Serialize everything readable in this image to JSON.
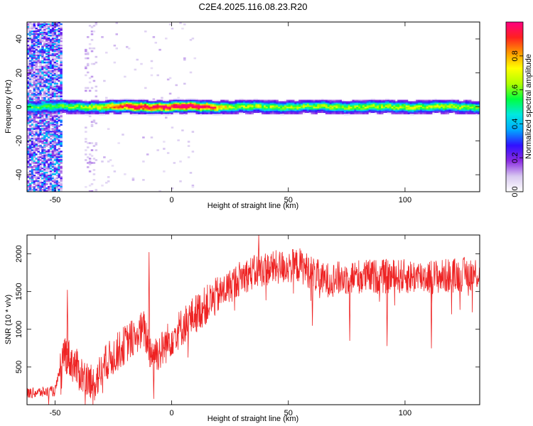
{
  "figure": {
    "title": "C2E4.2025.116.08.23.R20"
  },
  "chart_data": [
    {
      "type": "heatmap",
      "xlabel": "Height of straight line (km)",
      "ylabel": "Frequency (Hz)",
      "xlim": [
        -62,
        132
      ],
      "ylim": [
        -50,
        50
      ],
      "xticks": [
        -50,
        0,
        50,
        100
      ],
      "yticks": [
        -40,
        -20,
        0,
        20,
        40
      ],
      "colorbar": {
        "label": "Normalized spectral amplitude",
        "range": [
          0,
          1
        ],
        "ticks": [
          0.0,
          0.2,
          0.4,
          0.6,
          0.8
        ],
        "tick_labels": [
          "0.0",
          "0.2",
          "0.4",
          "0.6",
          "0.8"
        ],
        "colormap": [
          "#ffffff",
          "#d8c8f0",
          "#8a2be2",
          "#3010ff",
          "#00a8ff",
          "#00e8e0",
          "#00ff40",
          "#b0ff00",
          "#ffff00",
          "#ff9900",
          "#ff2020",
          "#ff0080"
        ]
      },
      "ridge": {
        "center_freq_hz": 0,
        "profile": [
          {
            "x": -48,
            "amp": 0.45
          },
          {
            "x": -40,
            "amp": 0.5
          },
          {
            "x": -30,
            "amp": 0.6
          },
          {
            "x": -17,
            "amp": 0.95
          },
          {
            "x": -10,
            "amp": 0.9
          },
          {
            "x": 0,
            "amp": 0.88
          },
          {
            "x": 5,
            "amp": 0.98
          },
          {
            "x": 15,
            "amp": 0.85
          },
          {
            "x": 25,
            "amp": 0.55
          },
          {
            "x": 50,
            "amp": 0.5
          },
          {
            "x": 75,
            "amp": 0.52
          },
          {
            "x": 100,
            "amp": 0.55
          },
          {
            "x": 132,
            "amp": 0.5
          }
        ]
      },
      "noise_region": {
        "x": [
          -62,
          -47
        ],
        "amp": 0.35
      }
    },
    {
      "type": "line",
      "xlabel": "Height of straight line (km)",
      "ylabel": "SNR (10 * v/v)",
      "xlim": [
        -62,
        132
      ],
      "ylim": [
        0,
        2250
      ],
      "xticks": [
        -50,
        0,
        50,
        100
      ],
      "yticks": [
        500,
        1000,
        1500,
        2000
      ],
      "series": [
        {
          "color": "#ee2222",
          "trend": [
            {
              "x": -62,
              "y": 150
            },
            {
              "x": -50,
              "y": 180
            },
            {
              "x": -46,
              "y": 700
            },
            {
              "x": -40,
              "y": 450
            },
            {
              "x": -34,
              "y": 250
            },
            {
              "x": -28,
              "y": 550
            },
            {
              "x": -20,
              "y": 800
            },
            {
              "x": -12,
              "y": 1000
            },
            {
              "x": -9,
              "y": 700
            },
            {
              "x": -5,
              "y": 700
            },
            {
              "x": 0,
              "y": 900
            },
            {
              "x": 10,
              "y": 1200
            },
            {
              "x": 20,
              "y": 1450
            },
            {
              "x": 30,
              "y": 1700
            },
            {
              "x": 40,
              "y": 1800
            },
            {
              "x": 55,
              "y": 1850
            },
            {
              "x": 65,
              "y": 1650
            },
            {
              "x": 80,
              "y": 1700
            },
            {
              "x": 100,
              "y": 1700
            },
            {
              "x": 115,
              "y": 1700
            },
            {
              "x": 132,
              "y": 1750
            }
          ],
          "spikes": [
            {
              "x": -45,
              "y": 1520
            },
            {
              "x": -10,
              "y": 2020
            },
            {
              "x": -8,
              "y": 80
            },
            {
              "x": 37,
              "y": 2250
            },
            {
              "x": 60,
              "y": 1050
            },
            {
              "x": 76,
              "y": 850
            },
            {
              "x": 92,
              "y": 780
            },
            {
              "x": 111,
              "y": 750
            }
          ]
        }
      ]
    }
  ]
}
